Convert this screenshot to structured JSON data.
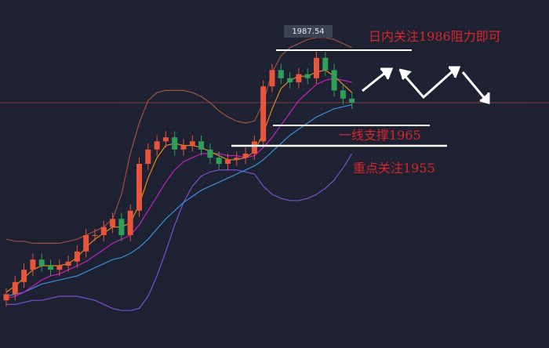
{
  "chart_data": {
    "type": "candlestick",
    "ylim": [
      1870,
      2010
    ],
    "price_tag": 1987.54,
    "annotations": [
      "日内关注1986阻力即可",
      "一线支撑1965",
      "重点关注1955"
    ],
    "up_color": "#e8543c",
    "down_color": "#2ea05a",
    "open": [
      1878,
      1881,
      1887,
      1893,
      1898,
      1895,
      1893,
      1895,
      1897,
      1902,
      1910,
      1910,
      1914,
      1918,
      1910,
      1922,
      1945,
      1952,
      1956,
      1958,
      1952,
      1954,
      1956,
      1952,
      1948,
      1945,
      1947,
      1948,
      1950,
      1956,
      1983,
      1991,
      1987,
      1985,
      1989,
      1987,
      1997,
      1991,
      1981,
      1977
    ],
    "high": [
      1884,
      1890,
      1896,
      1901,
      1901,
      1898,
      1898,
      1900,
      1905,
      1913,
      1913,
      1917,
      1921,
      1921,
      1925,
      1948,
      1955,
      1959,
      1961,
      1961,
      1957,
      1959,
      1959,
      1955,
      1951,
      1950,
      1951,
      1953,
      1959,
      1986,
      1994,
      1994,
      1990,
      1992,
      1992,
      2000,
      2000,
      1994,
      1984,
      1980
    ],
    "low": [
      1875,
      1878,
      1884,
      1890,
      1892,
      1890,
      1890,
      1892,
      1894,
      1899,
      1907,
      1907,
      1911,
      1907,
      1907,
      1919,
      1942,
      1949,
      1953,
      1949,
      1949,
      1951,
      1949,
      1945,
      1942,
      1942,
      1944,
      1945,
      1947,
      1953,
      1980,
      1984,
      1982,
      1982,
      1984,
      1984,
      1988,
      1978,
      1974,
      1972
    ],
    "close": [
      1881,
      1887,
      1893,
      1898,
      1895,
      1893,
      1895,
      1897,
      1902,
      1910,
      1910,
      1914,
      1918,
      1910,
      1922,
      1945,
      1952,
      1956,
      1958,
      1952,
      1954,
      1956,
      1952,
      1948,
      1945,
      1947,
      1948,
      1950,
      1956,
      1983,
      1991,
      1987,
      1985,
      1989,
      1987,
      1997,
      1991,
      1981,
      1977,
      1975
    ],
    "lines": [
      {
        "color": "#a0503c",
        "values": [
          1908,
          1907,
          1907,
          1906,
          1906,
          1906,
          1906,
          1907,
          1908,
          1910,
          1912,
          1914,
          1918,
          1930,
          1950,
          1965,
          1976,
          1980,
          1981,
          1981,
          1981,
          1980,
          1978,
          1975,
          1971,
          1968,
          1966,
          1965,
          1966,
          1975,
          1990,
          1998,
          2002,
          2004,
          2006,
          2007,
          2007,
          2006,
          2004,
          2002
        ]
      },
      {
        "color": "#7b4fd0",
        "values": [
          1876,
          1876,
          1877,
          1878,
          1878,
          1879,
          1880,
          1880,
          1880,
          1879,
          1878,
          1876,
          1874,
          1873,
          1873,
          1874,
          1880,
          1890,
          1902,
          1915,
          1926,
          1934,
          1939,
          1941,
          1942,
          1942,
          1942,
          1941,
          1940,
          1934,
          1930,
          1928,
          1927,
          1927,
          1928,
          1930,
          1933,
          1937,
          1943,
          1950
        ]
      },
      {
        "color": "#3a8fd8",
        "values": [
          1880,
          1881,
          1882,
          1884,
          1886,
          1887,
          1888,
          1889,
          1890,
          1892,
          1894,
          1896,
          1898,
          1899,
          1901,
          1904,
          1908,
          1913,
          1918,
          1922,
          1926,
          1929,
          1932,
          1934,
          1936,
          1938,
          1940,
          1942,
          1944,
          1947,
          1951,
          1955,
          1959,
          1962,
          1965,
          1968,
          1970,
          1972,
          1973,
          1974
        ]
      },
      {
        "color": "#c020c0",
        "values": [
          1879,
          1880,
          1882,
          1885,
          1888,
          1890,
          1891,
          1893,
          1895,
          1897,
          1900,
          1903,
          1906,
          1908,
          1910,
          1915,
          1922,
          1929,
          1936,
          1942,
          1946,
          1948,
          1950,
          1950,
          1950,
          1949,
          1949,
          1948,
          1949,
          1953,
          1958,
          1964,
          1970,
          1976,
          1980,
          1984,
          1986,
          1987,
          1986,
          1985
        ]
      },
      {
        "color": "#e08a20",
        "values": [
          1882,
          1885,
          1889,
          1893,
          1895,
          1895,
          1895,
          1896,
          1899,
          1904,
          1908,
          1911,
          1914,
          1914,
          1916,
          1925,
          1938,
          1948,
          1954,
          1955,
          1954,
          1954,
          1953,
          1951,
          1949,
          1947,
          1947,
          1948,
          1951,
          1960,
          1972,
          1982,
          1986,
          1988,
          1988,
          1990,
          1991,
          1988,
          1984,
          1980
        ]
      }
    ]
  }
}
